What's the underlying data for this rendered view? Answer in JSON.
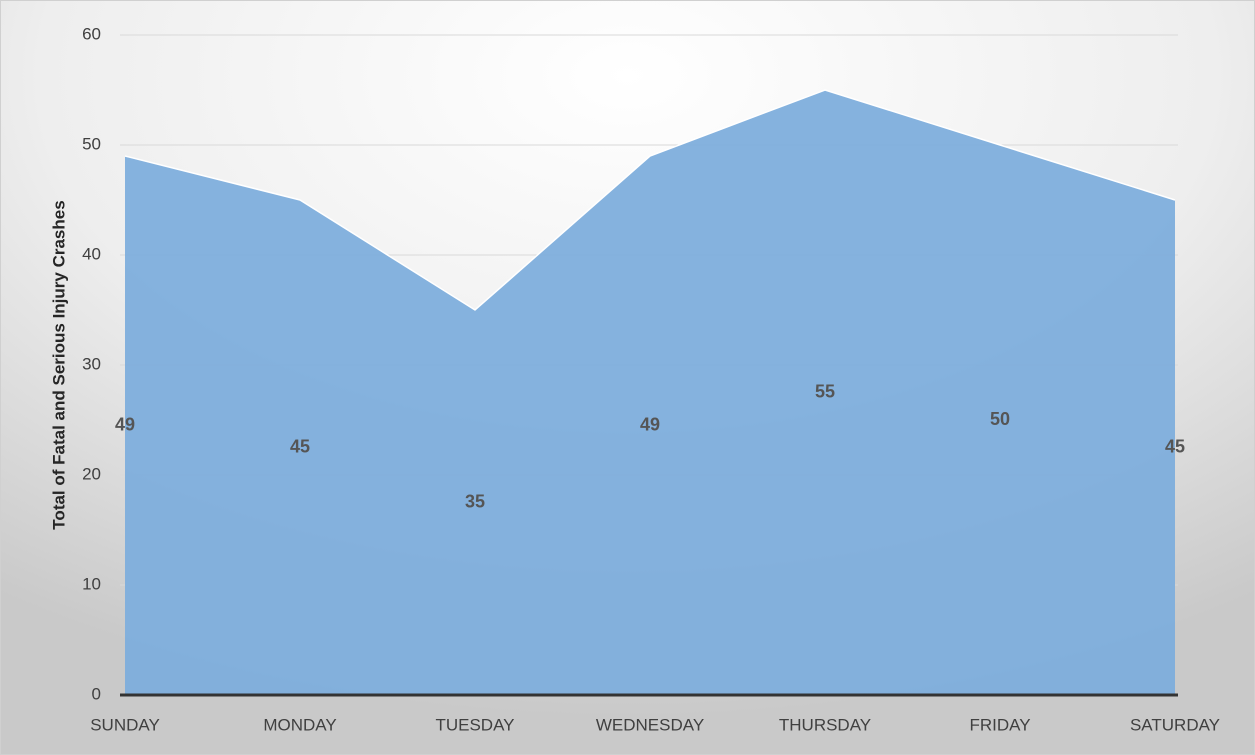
{
  "chart_data": {
    "type": "area",
    "y_label": "Total of Fatal and Serious Injury Crashes",
    "categories": [
      "SUNDAY",
      "MONDAY",
      "TUESDAY",
      "WEDNESDAY",
      "THURSDAY",
      "FRIDAY",
      "SATURDAY"
    ],
    "values": [
      49,
      45,
      35,
      49,
      55,
      50,
      45
    ],
    "color": "#7eaedc",
    "ylim": [
      0,
      60
    ],
    "yticks": [
      0,
      10,
      20,
      30,
      40,
      50,
      60
    ],
    "grid": true
  }
}
